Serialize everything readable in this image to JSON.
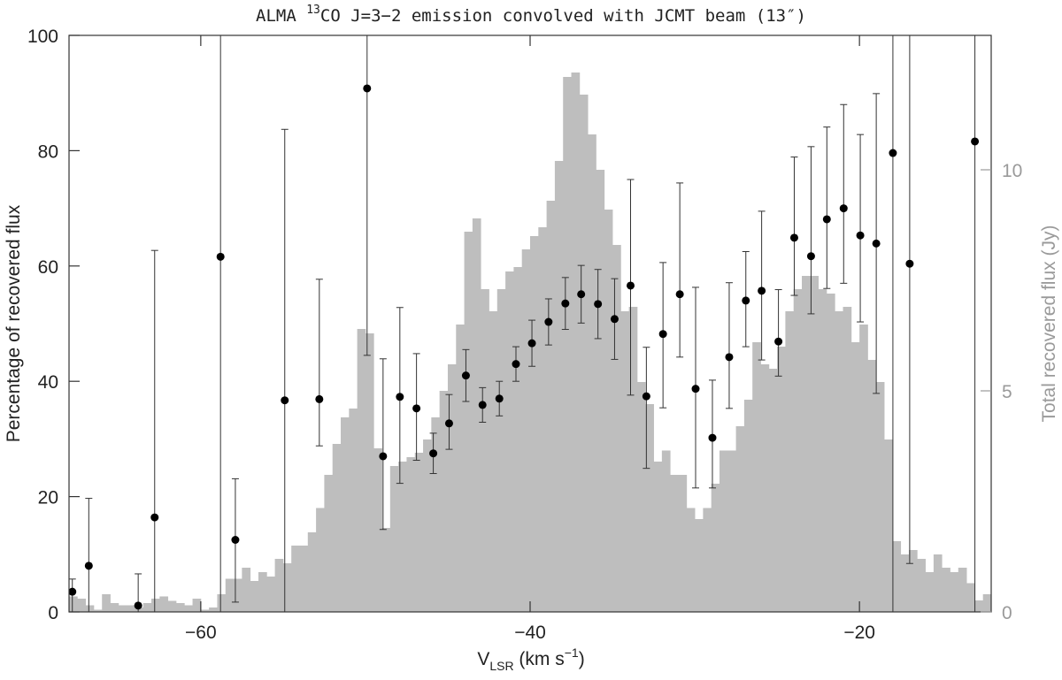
{
  "chart_data": {
    "type": "histogram+errorbar",
    "title_parts": [
      "ALMA ",
      "13",
      "CO J=3−2 emission convolved with JCMT beam (13″)"
    ],
    "xlabel_parts": [
      "V",
      "LSR",
      " (km s",
      "−1",
      ")"
    ],
    "ylabel": "Percentage of recovered flux",
    "y2label": "Total recovered flux (Jy)",
    "xlim": [
      -68,
      -12
    ],
    "ylim": [
      0,
      100
    ],
    "y2lim": [
      0,
      13.04
    ],
    "xticks": [
      {
        "value": -60,
        "label": "−60"
      },
      {
        "value": -40,
        "label": "−40"
      },
      {
        "value": -20,
        "label": "−20"
      }
    ],
    "yticks": [
      0,
      20,
      40,
      60,
      80,
      100
    ],
    "y2ticks": [
      0,
      5,
      10
    ],
    "histogram": {
      "axis": "y2",
      "color": "#bebebe",
      "bins": [
        -68,
        -67.5,
        -67,
        -66.5,
        -66,
        -65.5,
        -65,
        -64.5,
        -64,
        -63.5,
        -63,
        -62.5,
        -62,
        -61.5,
        -61,
        -60.5,
        -60,
        -59.5,
        -59,
        -58.5,
        -58,
        -57.5,
        -57,
        -56.5,
        -56,
        -55.5,
        -55,
        -54.5,
        -54,
        -53.5,
        -53,
        -52.5,
        -52,
        -51.5,
        -51,
        -50.5,
        -50,
        -49.5,
        -49,
        -48.5,
        -48,
        -47.5,
        -47,
        -46.5,
        -46,
        -45.5,
        -45,
        -44.5,
        -44,
        -43.5,
        -43,
        -42.5,
        -42,
        -41.5,
        -41,
        -40.5,
        -40,
        -39.5,
        -39,
        -38.5,
        -38,
        -37.5,
        -37,
        -36.5,
        -36,
        -35.5,
        -35,
        -34.5,
        -34,
        -33.5,
        -33,
        -32.5,
        -32,
        -31.5,
        -31,
        -30.5,
        -30,
        -29.5,
        -29,
        -28.5,
        -28,
        -27.5,
        -27,
        -26.5,
        -26,
        -25.5,
        -25,
        -24.5,
        -24,
        -23.5,
        -23,
        -22.5,
        -22,
        -21.5,
        -21,
        -20.5,
        -20,
        -19.5,
        -19,
        -18.5,
        -18,
        -17.5,
        -17,
        -16.5,
        -16,
        -15.5,
        -15,
        -14.5,
        -14,
        -13.5,
        -13,
        -12.5,
        -12
      ],
      "counts": [
        0.35,
        0.3,
        0.15,
        0.05,
        0.4,
        0.2,
        0.15,
        0.15,
        0.1,
        0.2,
        0.3,
        0.35,
        0.25,
        0.2,
        0.15,
        0.3,
        0.05,
        0.1,
        0.4,
        0.75,
        0.75,
        1.0,
        0.7,
        0.9,
        0.8,
        1.2,
        1.1,
        1.5,
        1.5,
        1.8,
        2.35,
        3.1,
        3.8,
        4.4,
        4.6,
        6.4,
        6.3,
        3.7,
        1.9,
        3.3,
        3.4,
        3.5,
        3.6,
        3.9,
        4.4,
        5.0,
        5.6,
        6.5,
        8.6,
        8.9,
        7.3,
        6.8,
        7.3,
        7.7,
        7.8,
        8.2,
        8.5,
        8.7,
        9.3,
        10.2,
        12.1,
        12.2,
        11.7,
        10.8,
        10.0,
        9.1,
        8.3,
        6.8,
        6.9,
        5.2,
        4.7,
        3.4,
        3.65,
        3.1,
        3.1,
        2.35,
        2.1,
        2.35,
        2.9,
        3.65,
        3.65,
        4.2,
        4.8,
        6.1,
        5.6,
        5.5,
        6.0,
        6.8,
        7.3,
        7.6,
        7.6,
        7.3,
        7.2,
        6.8,
        6.9,
        6.1,
        6.5,
        5.7,
        5.2,
        3.9,
        1.6,
        1.3,
        1.4,
        1.2,
        0.9,
        1.3,
        1.0,
        0.9,
        1.0,
        0.65,
        0.26,
        0.4
      ]
    },
    "points": {
      "color": "#000000",
      "x": [
        -67.8,
        -66.8,
        -63.8,
        -62.8,
        -58.8,
        -57.9,
        -54.9,
        -52.8,
        -49.9,
        -48.93,
        -47.91,
        -46.9,
        -45.88,
        -44.92,
        -43.9,
        -42.89,
        -41.87,
        -40.86,
        -39.89,
        -38.88,
        -37.86,
        -36.9,
        -35.88,
        -34.87,
        -33.9,
        -32.94,
        -31.93,
        -30.91,
        -29.95,
        -28.93,
        -27.91,
        -26.9,
        -25.94,
        -24.92,
        -23.96,
        -22.94,
        -21.98,
        -20.96,
        -19.95,
        -18.98,
        -17.97,
        -16.95,
        -12.99
      ],
      "y": [
        3.5,
        8.0,
        1.1,
        16.4,
        61.6,
        12.5,
        36.7,
        36.9,
        90.8,
        27.0,
        37.3,
        35.3,
        27.5,
        32.7,
        41.0,
        35.9,
        37.0,
        43.0,
        46.6,
        50.3,
        53.5,
        55.1,
        53.4,
        50.8,
        56.6,
        37.4,
        48.2,
        55.1,
        38.7,
        30.2,
        44.2,
        54.0,
        55.7,
        46.9,
        64.9,
        61.7,
        68.1,
        70.0,
        65.3,
        63.9,
        79.6,
        60.4,
        81.6
      ],
      "err_minus": [
        3.5,
        8.0,
        1.1,
        16.4,
        61.6,
        10.8,
        36.7,
        8.1,
        46.3,
        12.7,
        15,
        9,
        3.5,
        4.5,
        4.5,
        3,
        3,
        3,
        4,
        4,
        4.5,
        5,
        6,
        7,
        19,
        12.5,
        12.8,
        10.9,
        17.2,
        8.7,
        8.9,
        8,
        12,
        6,
        10,
        10,
        12,
        13,
        15,
        26,
        79.6,
        52,
        81.6
      ],
      "err_plus": [
        2.2,
        11.7,
        5.5,
        46.3,
        40,
        10.6,
        47,
        20.8,
        20,
        16.9,
        15.5,
        9.5,
        3.5,
        5,
        4.5,
        3,
        3,
        3,
        4,
        4,
        4.5,
        5,
        6,
        7,
        18.4,
        8.5,
        12.4,
        19.3,
        17.6,
        10,
        12.9,
        8.5,
        13.8,
        9,
        14,
        19,
        16,
        18,
        17.5,
        26,
        30,
        45,
        30
      ]
    }
  }
}
